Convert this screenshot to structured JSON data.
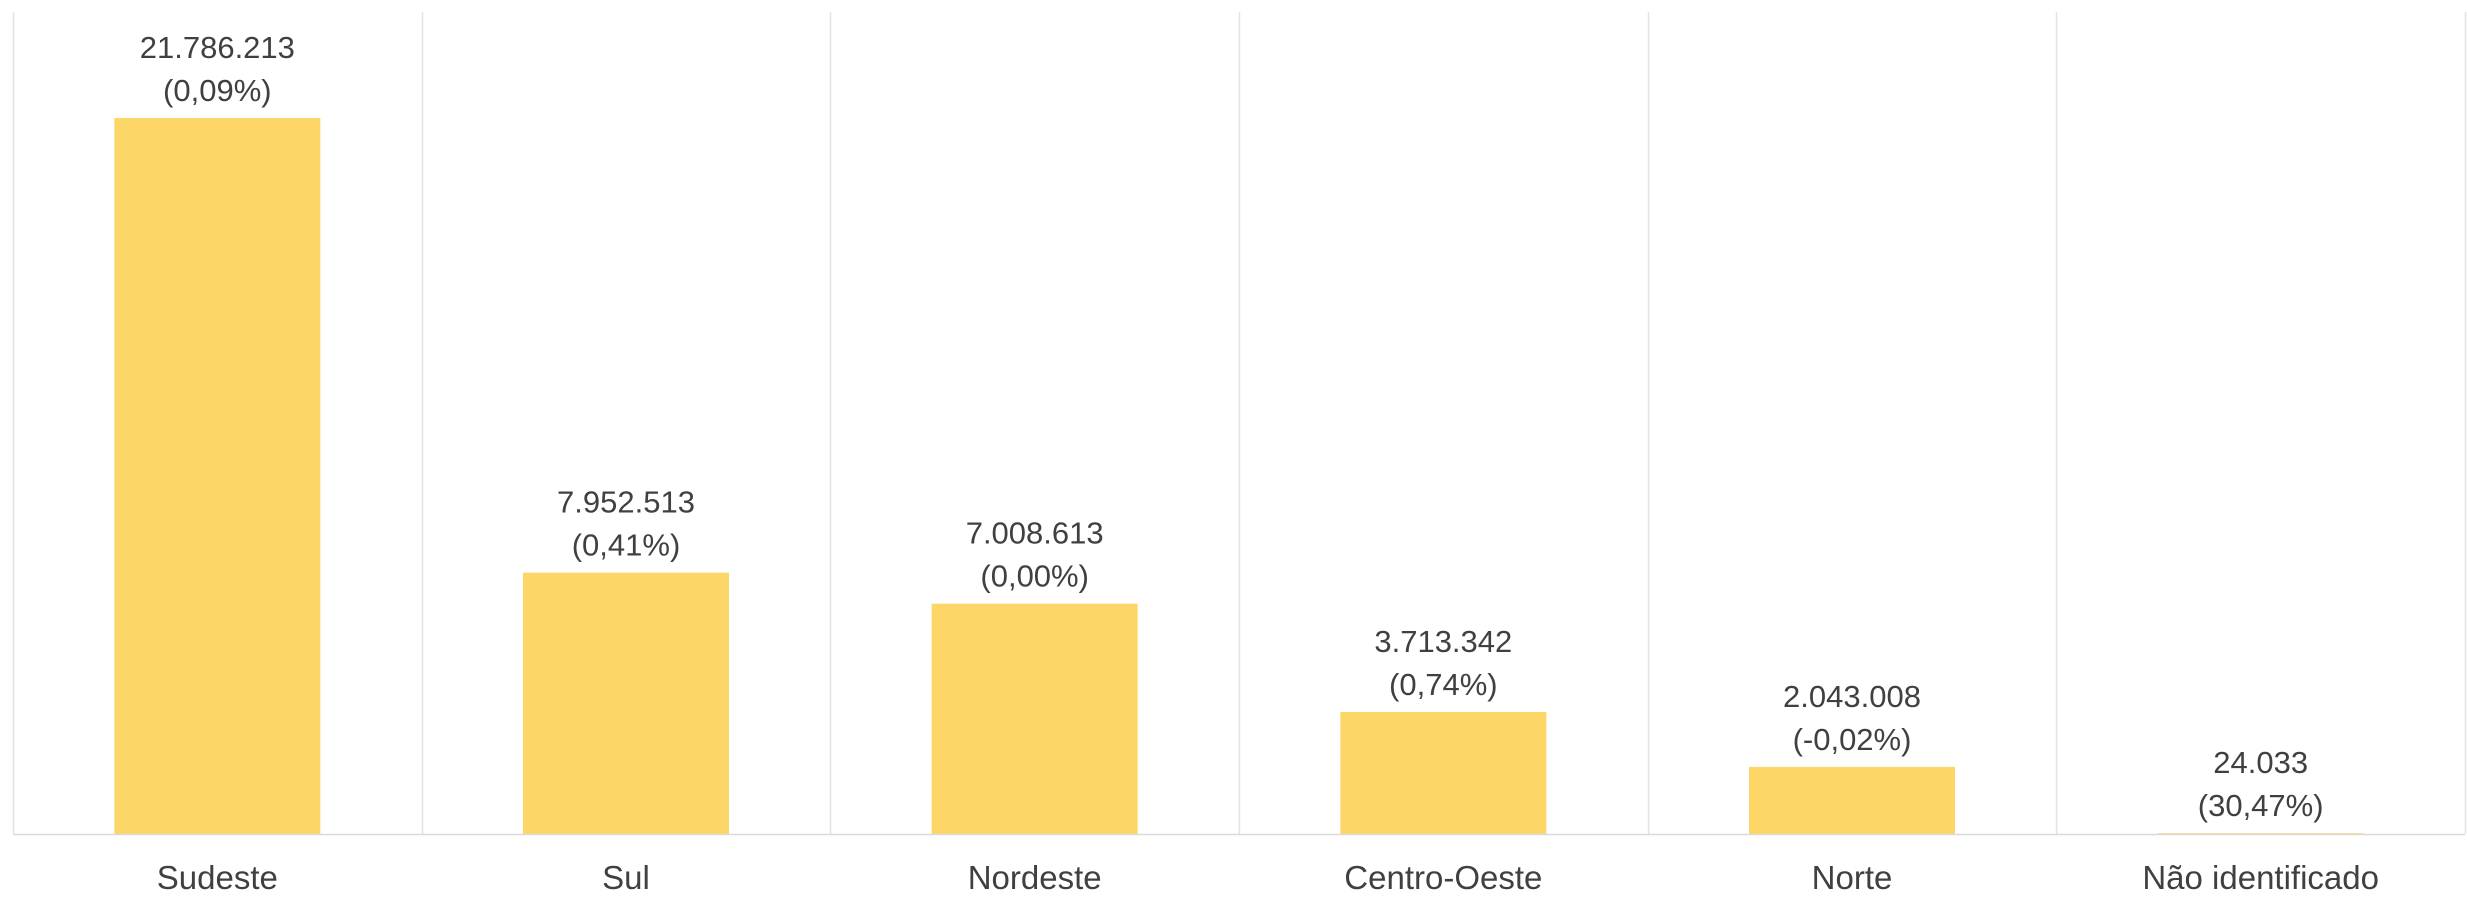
{
  "chart_data": {
    "type": "bar",
    "title": "",
    "xlabel": "",
    "ylabel": "",
    "categories": [
      "Sudeste",
      "Sul",
      "Nordeste",
      "Centro-Oeste",
      "Norte",
      "Não identificado"
    ],
    "values": [
      21786213,
      7952513,
      7008613,
      3713342,
      2043008,
      24033
    ],
    "value_labels": [
      "21.786.213",
      "7.952.513",
      "7.008.613",
      "3.713.342",
      "2.043.008",
      "24.033"
    ],
    "change_labels": [
      "(0,09%)",
      "(0,41%)",
      "(0,00%)",
      "(0,74%)",
      "(-0,02%)",
      "(30,47%)"
    ],
    "ylim": [
      0,
      21786213
    ],
    "grid": "vertical separators between categories",
    "legend": "none",
    "colors": {
      "bar": "#FCD768",
      "text": "#404040",
      "grid": "#E3E3E3",
      "axis": "#D9D9D9"
    }
  }
}
